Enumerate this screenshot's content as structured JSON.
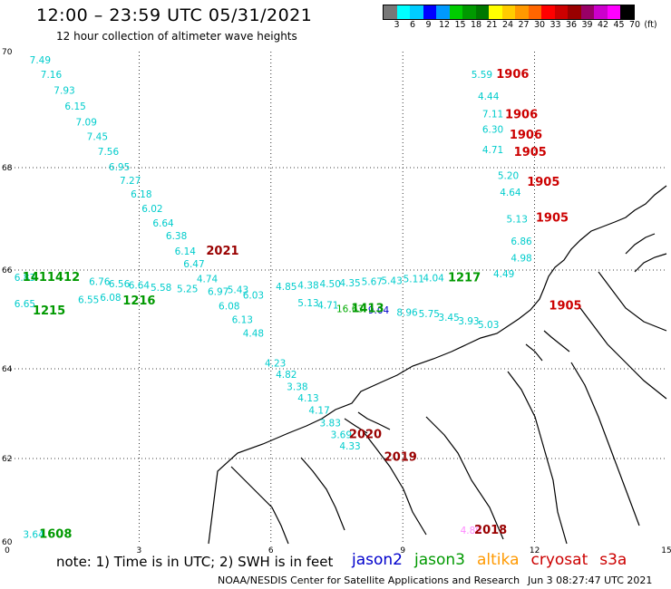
{
  "title": "12:00 – 23:59 UTC 05/31/2021",
  "subtitle": "12 hour collection of altimeter wave heights",
  "scale": {
    "colors": [
      "#777777",
      "#00ffff",
      "#00ccff",
      "#0000ff",
      "#0099ff",
      "#00cc00",
      "#009900",
      "#007700",
      "#ffff00",
      "#ffcc00",
      "#ff9900",
      "#ff6600",
      "#ff0000",
      "#cc0000",
      "#990000",
      "#990066",
      "#cc00cc",
      "#ff00ff",
      "#000000"
    ],
    "labels": [
      "3",
      "6",
      "9",
      "12",
      "15",
      "18",
      "21",
      "24",
      "27",
      "30",
      "33",
      "36",
      "39",
      "42",
      "45",
      "70",
      "(ft)"
    ]
  },
  "axes": {
    "lat_labels": [
      "70",
      "68",
      "66",
      "64",
      "62",
      "60"
    ],
    "lon_labels": [
      "0",
      "3",
      "6",
      "9",
      "12",
      "15"
    ]
  },
  "observations": [
    {
      "t": "7.49",
      "lon": 0.75,
      "lat": 69.8,
      "c": "#00cccc"
    },
    {
      "t": "7.16",
      "lon": 1.0,
      "lat": 69.55,
      "c": "#00cccc"
    },
    {
      "t": "7.93",
      "lon": 1.3,
      "lat": 69.27,
      "c": "#00cccc"
    },
    {
      "t": "6.15",
      "lon": 1.55,
      "lat": 69.0,
      "c": "#00cccc"
    },
    {
      "t": "7.09",
      "lon": 1.8,
      "lat": 68.73,
      "c": "#00cccc"
    },
    {
      "t": "7.45",
      "lon": 2.05,
      "lat": 68.48,
      "c": "#00cccc"
    },
    {
      "t": "7.56",
      "lon": 2.3,
      "lat": 68.22,
      "c": "#00cccc"
    },
    {
      "t": "6.95",
      "lon": 2.55,
      "lat": 67.95,
      "c": "#00cccc"
    },
    {
      "t": "7.27",
      "lon": 2.8,
      "lat": 67.68,
      "c": "#00cccc"
    },
    {
      "t": "6.18",
      "lon": 3.05,
      "lat": 67.42,
      "c": "#00cccc"
    },
    {
      "t": "6.02",
      "lon": 3.3,
      "lat": 67.13,
      "c": "#00cccc"
    },
    {
      "t": "6.64",
      "lon": 3.55,
      "lat": 66.85,
      "c": "#00cccc"
    },
    {
      "t": "6.38",
      "lon": 3.85,
      "lat": 66.6,
      "c": "#00cccc"
    },
    {
      "t": "6.14",
      "lon": 4.05,
      "lat": 66.3,
      "c": "#00cccc"
    },
    {
      "t": "6.47",
      "lon": 4.25,
      "lat": 66.05,
      "c": "#00cccc"
    },
    {
      "t": "4.74",
      "lon": 4.55,
      "lat": 65.75,
      "c": "#00cccc"
    },
    {
      "t": "6.97",
      "lon": 4.8,
      "lat": 65.5,
      "c": "#00cccc"
    },
    {
      "t": "6.08",
      "lon": 5.05,
      "lat": 65.2,
      "c": "#00cccc"
    },
    {
      "t": "6.13",
      "lon": 5.35,
      "lat": 64.93,
      "c": "#00cccc"
    },
    {
      "t": "4.48",
      "lon": 5.6,
      "lat": 64.65,
      "c": "#00cccc"
    },
    {
      "t": "4.23",
      "lon": 6.1,
      "lat": 64.05,
      "c": "#00cccc"
    },
    {
      "t": "4.82",
      "lon": 6.35,
      "lat": 63.8,
      "c": "#00cccc"
    },
    {
      "t": "3.38",
      "lon": 6.6,
      "lat": 63.53,
      "c": "#00cccc"
    },
    {
      "t": "4.13",
      "lon": 6.85,
      "lat": 63.27,
      "c": "#00cccc"
    },
    {
      "t": "4.17",
      "lon": 7.1,
      "lat": 63.0,
      "c": "#00cccc"
    },
    {
      "t": "3.83",
      "lon": 7.35,
      "lat": 62.72,
      "c": "#00cccc"
    },
    {
      "t": "3.69",
      "lon": 7.6,
      "lat": 62.45,
      "c": "#00cccc"
    },
    {
      "t": "4.33",
      "lon": 7.8,
      "lat": 62.2,
      "c": "#00cccc"
    },
    {
      "t": "6.83",
      "lon": 0.4,
      "lat": 65.78,
      "c": "#00cccc"
    },
    {
      "t": "6.65",
      "lon": 0.4,
      "lat": 65.25,
      "c": "#00cccc"
    },
    {
      "t": "6.76",
      "lon": 2.1,
      "lat": 65.7,
      "c": "#00cccc"
    },
    {
      "t": "6.56",
      "lon": 2.55,
      "lat": 65.65,
      "c": "#00cccc"
    },
    {
      "t": "6.64",
      "lon": 3.0,
      "lat": 65.62,
      "c": "#00cccc"
    },
    {
      "t": "6.55",
      "lon": 1.85,
      "lat": 65.33,
      "c": "#00cccc"
    },
    {
      "t": "6.08",
      "lon": 2.35,
      "lat": 65.38,
      "c": "#00cccc"
    },
    {
      "t": "5.58",
      "lon": 3.5,
      "lat": 65.58,
      "c": "#00cccc"
    },
    {
      "t": "5.25",
      "lon": 4.1,
      "lat": 65.55,
      "c": "#00cccc"
    },
    {
      "t": "5.43",
      "lon": 5.25,
      "lat": 65.53,
      "c": "#00cccc"
    },
    {
      "t": "6.03",
      "lon": 5.6,
      "lat": 65.42,
      "c": "#00cccc"
    },
    {
      "t": "4.85",
      "lon": 6.35,
      "lat": 65.6,
      "c": "#00cccc"
    },
    {
      "t": "4.38",
      "lon": 6.85,
      "lat": 65.62,
      "c": "#00cccc"
    },
    {
      "t": "4.50",
      "lon": 7.35,
      "lat": 65.65,
      "c": "#00cccc"
    },
    {
      "t": "4.35",
      "lon": 7.8,
      "lat": 65.67,
      "c": "#00cccc"
    },
    {
      "t": "5.67",
      "lon": 8.3,
      "lat": 65.7,
      "c": "#00cccc"
    },
    {
      "t": "5.43",
      "lon": 8.75,
      "lat": 65.72,
      "c": "#00cccc"
    },
    {
      "t": "5.11",
      "lon": 9.25,
      "lat": 65.75,
      "c": "#00cccc"
    },
    {
      "t": "4.04",
      "lon": 9.7,
      "lat": 65.77,
      "c": "#00cccc"
    },
    {
      "t": "4.49",
      "lon": 11.3,
      "lat": 65.85,
      "c": "#00cccc"
    },
    {
      "t": "5.13",
      "lon": 6.85,
      "lat": 65.27,
      "c": "#00cccc"
    },
    {
      "t": "4.71",
      "lon": 7.3,
      "lat": 65.22,
      "c": "#00cccc"
    },
    {
      "t": "8.96",
      "lon": 9.1,
      "lat": 65.07,
      "c": "#00cccc"
    },
    {
      "t": "5.75",
      "lon": 9.6,
      "lat": 65.05,
      "c": "#00cccc"
    },
    {
      "t": "3.45",
      "lon": 10.05,
      "lat": 64.97,
      "c": "#00cccc"
    },
    {
      "t": "3.93",
      "lon": 10.5,
      "lat": 64.9,
      "c": "#00cccc"
    },
    {
      "t": "5.03",
      "lon": 10.95,
      "lat": 64.83,
      "c": "#00cccc"
    },
    {
      "t": "5.59",
      "lon": 10.8,
      "lat": 69.55,
      "c": "#00cccc"
    },
    {
      "t": "4.44",
      "lon": 10.95,
      "lat": 69.17,
      "c": "#00cccc"
    },
    {
      "t": "7.11",
      "lon": 11.05,
      "lat": 68.87,
      "c": "#00cccc"
    },
    {
      "t": "6.30",
      "lon": 11.05,
      "lat": 68.6,
      "c": "#00cccc"
    },
    {
      "t": "4.71",
      "lon": 11.05,
      "lat": 68.25,
      "c": "#00cccc"
    },
    {
      "t": "5.20",
      "lon": 11.4,
      "lat": 67.78,
      "c": "#00cccc"
    },
    {
      "t": "4.64",
      "lon": 11.45,
      "lat": 67.45,
      "c": "#00cccc"
    },
    {
      "t": "5.13",
      "lon": 11.6,
      "lat": 66.93,
      "c": "#00cccc"
    },
    {
      "t": "6.86",
      "lon": 11.7,
      "lat": 66.5,
      "c": "#00cccc"
    },
    {
      "t": "4.98",
      "lon": 11.7,
      "lat": 66.17,
      "c": "#00cccc"
    },
    {
      "t": "16.63",
      "lon": 7.8,
      "lat": 65.15,
      "c": "#00aa00"
    },
    {
      "t": "9.04",
      "lon": 8.45,
      "lat": 65.12,
      "c": "#0000cc"
    },
    {
      "t": "3.64",
      "lon": 0.6,
      "lat": 60.1,
      "c": "#00cccc"
    },
    {
      "t": "4.89",
      "lon": 10.55,
      "lat": 60.2,
      "c": "#ff88ff"
    }
  ],
  "time_tags": [
    {
      "t": "1906",
      "lon": 11.5,
      "lat": 69.55,
      "c": "#cc0000"
    },
    {
      "t": "1906",
      "lon": 11.7,
      "lat": 68.85,
      "c": "#cc0000"
    },
    {
      "t": "1906",
      "lon": 11.8,
      "lat": 68.5,
      "c": "#cc0000"
    },
    {
      "t": "1905",
      "lon": 11.9,
      "lat": 68.2,
      "c": "#cc0000"
    },
    {
      "t": "1905",
      "lon": 12.2,
      "lat": 67.65,
      "c": "#cc0000"
    },
    {
      "t": "1905",
      "lon": 12.4,
      "lat": 66.95,
      "c": "#cc0000"
    },
    {
      "t": "1905",
      "lon": 12.7,
      "lat": 65.2,
      "c": "#cc0000"
    },
    {
      "t": "2021",
      "lon": 4.9,
      "lat": 66.3,
      "c": "#990000"
    },
    {
      "t": "1411412",
      "lon": 1.0,
      "lat": 65.78,
      "c": "#009900"
    },
    {
      "t": "1217",
      "lon": 10.4,
      "lat": 65.77,
      "c": "#009900"
    },
    {
      "t": "1216",
      "lon": 3.0,
      "lat": 65.3,
      "c": "#009900"
    },
    {
      "t": "1215",
      "lon": 0.95,
      "lat": 65.1,
      "c": "#009900"
    },
    {
      "t": "1413",
      "lon": 8.2,
      "lat": 65.15,
      "c": "#009900"
    },
    {
      "t": "2020",
      "lon": 8.15,
      "lat": 62.45,
      "c": "#990000"
    },
    {
      "t": "2019",
      "lon": 8.95,
      "lat": 61.95,
      "c": "#990000"
    },
    {
      "t": "2018",
      "lon": 11.0,
      "lat": 60.2,
      "c": "#990000"
    },
    {
      "t": "1608",
      "lon": 1.1,
      "lat": 60.1,
      "c": "#009900"
    }
  ],
  "legend": {
    "note": "note:  1) Time is in UTC;  2) SWH is in feet",
    "satellites": [
      {
        "name": "jason2",
        "color": "#0000cc"
      },
      {
        "name": "jason3",
        "color": "#009900"
      },
      {
        "name": "altika",
        "color": "#ff9900"
      },
      {
        "name": "cryosat",
        "color": "#cc0000"
      },
      {
        "name": "s3a",
        "color": "#cc0000"
      }
    ],
    "credit": "NOAA/NESDIS Center for Satellite Applications and Research",
    "timestamp": "Jun  3 08:27:47 UTC 2021"
  }
}
